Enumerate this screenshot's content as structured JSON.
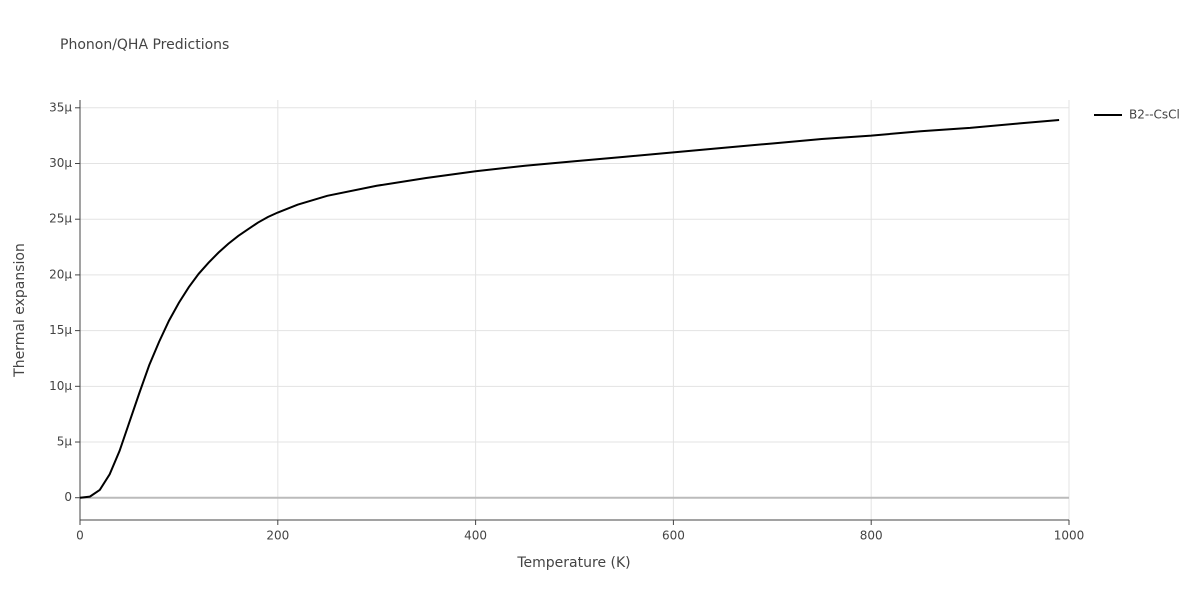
{
  "chart_data": {
    "type": "line",
    "title": "Phonon/QHA Predictions",
    "x_label": "Temperature (K)",
    "y_label": "Thermal expansion",
    "x": [
      0,
      10,
      20,
      30,
      40,
      50,
      60,
      70,
      80,
      90,
      100,
      110,
      120,
      130,
      140,
      150,
      160,
      170,
      180,
      190,
      200,
      220,
      250,
      300,
      350,
      400,
      450,
      500,
      550,
      600,
      650,
      700,
      750,
      800,
      850,
      900,
      950,
      990
    ],
    "series": [
      {
        "name": "B2--CsCl",
        "color": "#000000",
        "values": [
          0,
          1e-07,
          7e-07,
          2.1e-06,
          4.2e-06,
          6.8e-06,
          9.4e-06,
          1.19e-05,
          1.4e-05,
          1.59e-05,
          1.75e-05,
          1.89e-05,
          2.01e-05,
          2.11e-05,
          2.2e-05,
          2.28e-05,
          2.35e-05,
          2.41e-05,
          2.47e-05,
          2.52e-05,
          2.56e-05,
          2.63e-05,
          2.71e-05,
          2.8e-05,
          2.87e-05,
          2.93e-05,
          2.98e-05,
          3.02e-05,
          3.06e-05,
          3.1e-05,
          3.14e-05,
          3.18e-05,
          3.22e-05,
          3.25e-05,
          3.29e-05,
          3.32e-05,
          3.36e-05,
          3.39e-05
        ]
      }
    ],
    "xlim": [
      0,
      1000
    ],
    "xticks": [
      0,
      200,
      400,
      600,
      800,
      1000
    ],
    "ylim": [
      -2e-06,
      3.57e-05
    ],
    "yticks": [
      0,
      {
        "value": 5e-06,
        "label": "5μ"
      },
      {
        "value": 1e-05,
        "label": "10μ"
      },
      {
        "value": 1.5e-05,
        "label": "15μ"
      },
      {
        "value": 2e-05,
        "label": "20μ"
      },
      {
        "value": 2.5e-05,
        "label": "25μ"
      },
      {
        "value": 3e-05,
        "label": "30μ"
      },
      {
        "value": 3.5e-05,
        "label": "35μ"
      }
    ],
    "grid": true,
    "legend": "right"
  }
}
